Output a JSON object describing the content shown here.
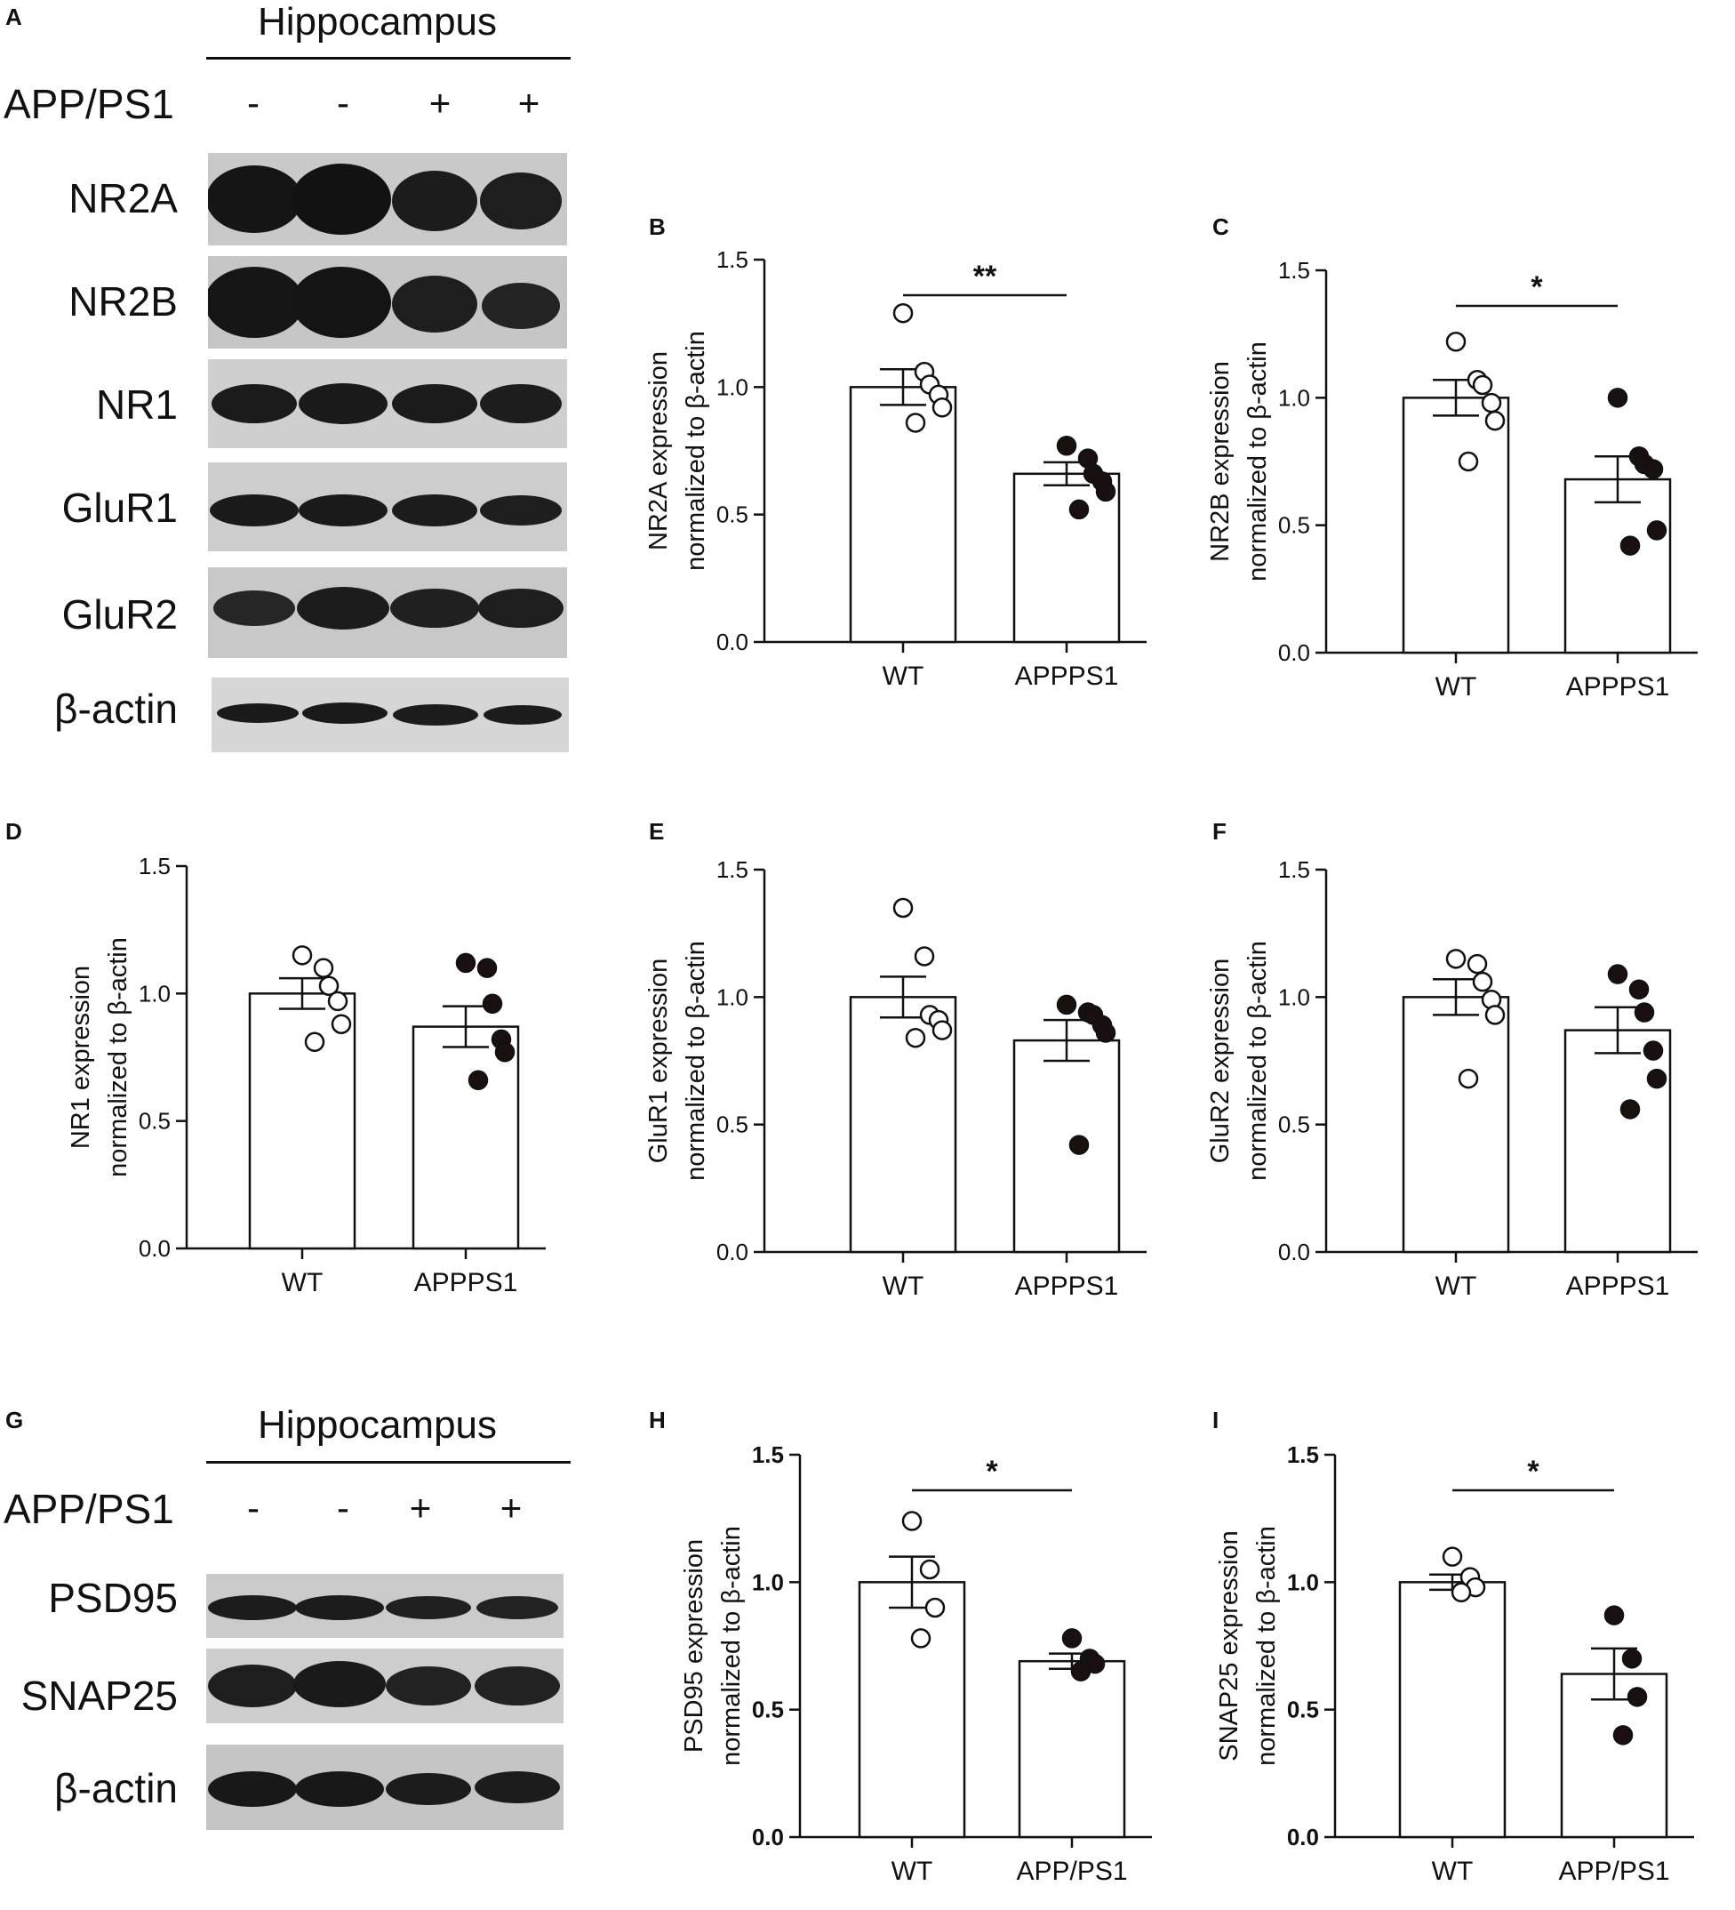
{
  "panels": {
    "a": "A",
    "b": "B",
    "c": "C",
    "d": "D",
    "e": "E",
    "f": "F",
    "g": "G",
    "h": "H",
    "i": "I"
  },
  "blot_top": {
    "title": "Hippocampus",
    "row_header": "APP/PS1",
    "signs": [
      "-",
      "-",
      "+",
      "+"
    ],
    "rows": [
      "NR2A",
      "NR2B",
      "NR1",
      "GluR1",
      "GluR2",
      "β-actin"
    ]
  },
  "blot_bottom": {
    "title": "Hippocampus",
    "row_header": "APP/PS1",
    "signs": [
      "-",
      "-",
      "+",
      "+"
    ],
    "rows": [
      "PSD95",
      "SNAP25",
      "β-actin"
    ]
  },
  "chart_data": [
    {
      "panel": "B",
      "type": "bar",
      "categories": [
        "WT",
        "APPPS1"
      ],
      "ylabel": [
        "NR2A expression",
        "normalized to β-actin"
      ],
      "ylim": [
        0,
        1.5
      ],
      "yticks": [
        "0.0",
        "0.5",
        "1.0",
        "1.5"
      ],
      "means": [
        1.0,
        0.66
      ],
      "sem": [
        0.07,
        0.045
      ],
      "points": [
        [
          1.29,
          1.06,
          1.01,
          0.97,
          0.92,
          0.86
        ],
        [
          0.77,
          0.72,
          0.66,
          0.63,
          0.59,
          0.52
        ]
      ],
      "significance": "**",
      "bold_ticks": false
    },
    {
      "panel": "C",
      "type": "bar",
      "categories": [
        "WT",
        "APPPS1"
      ],
      "ylabel": [
        "NR2B expression",
        "normalized to β-actin"
      ],
      "ylim": [
        0,
        1.5
      ],
      "yticks": [
        "0.0",
        "0.5",
        "1.0",
        "1.5"
      ],
      "means": [
        1.0,
        0.68
      ],
      "sem": [
        0.07,
        0.09
      ],
      "points": [
        [
          1.22,
          1.07,
          1.05,
          0.98,
          0.91,
          0.75
        ],
        [
          1.0,
          0.77,
          0.74,
          0.72,
          0.48,
          0.42
        ]
      ],
      "significance": "*",
      "bold_ticks": false
    },
    {
      "panel": "D",
      "type": "bar",
      "categories": [
        "WT",
        "APPPS1"
      ],
      "ylabel": [
        "NR1 expression",
        "normalized to β-actin"
      ],
      "ylim": [
        0,
        1.5
      ],
      "yticks": [
        "0.0",
        "0.5",
        "1.0",
        "1.5"
      ],
      "means": [
        1.0,
        0.87
      ],
      "sem": [
        0.06,
        0.08
      ],
      "points": [
        [
          1.15,
          1.1,
          1.03,
          0.97,
          0.88,
          0.81
        ],
        [
          1.12,
          1.1,
          0.96,
          0.82,
          0.77,
          0.66
        ]
      ],
      "significance": "",
      "bold_ticks": false
    },
    {
      "panel": "E",
      "type": "bar",
      "categories": [
        "WT",
        "APPPS1"
      ],
      "ylabel": [
        "GluR1 expression",
        "normalized to β-actin"
      ],
      "ylim": [
        0,
        1.5
      ],
      "yticks": [
        "0.0",
        "0.5",
        "1.0",
        "1.5"
      ],
      "means": [
        1.0,
        0.83
      ],
      "sem": [
        0.08,
        0.08
      ],
      "points": [
        [
          1.35,
          1.16,
          0.93,
          0.91,
          0.87,
          0.84
        ],
        [
          0.97,
          0.94,
          0.93,
          0.89,
          0.86,
          0.42
        ]
      ],
      "significance": "",
      "bold_ticks": false
    },
    {
      "panel": "F",
      "type": "bar",
      "categories": [
        "WT",
        "APPPS1"
      ],
      "ylabel": [
        "GluR2 expression",
        "normalized to β-actin"
      ],
      "ylim": [
        0,
        1.5
      ],
      "yticks": [
        "0.0",
        "0.5",
        "1.0",
        "1.5"
      ],
      "means": [
        1.0,
        0.87
      ],
      "sem": [
        0.07,
        0.09
      ],
      "points": [
        [
          1.15,
          1.13,
          1.06,
          0.99,
          0.93,
          0.68
        ],
        [
          1.09,
          1.03,
          0.94,
          0.79,
          0.68,
          0.56
        ]
      ],
      "significance": "",
      "bold_ticks": false
    },
    {
      "panel": "H",
      "type": "bar",
      "categories": [
        "WT",
        "APP/PS1"
      ],
      "ylabel": [
        "PSD95 expression",
        "normalized to β-actin"
      ],
      "ylim": [
        0,
        1.5
      ],
      "yticks": [
        "0.0",
        "0.5",
        "1.0",
        "1.5"
      ],
      "means": [
        1.0,
        0.69
      ],
      "sem": [
        0.1,
        0.03
      ],
      "points": [
        [
          1.24,
          1.05,
          0.9,
          0.78
        ],
        [
          0.78,
          0.7,
          0.68,
          0.65
        ]
      ],
      "significance": "*",
      "bold_ticks": true
    },
    {
      "panel": "I",
      "type": "bar",
      "categories": [
        "WT",
        "APP/PS1"
      ],
      "ylabel": [
        "SNAP25 expression",
        "normalized to β-actin"
      ],
      "ylim": [
        0,
        1.5
      ],
      "yticks": [
        "0.0",
        "0.5",
        "1.0",
        "1.5"
      ],
      "means": [
        1.0,
        0.64
      ],
      "sem": [
        0.03,
        0.1
      ],
      "points": [
        [
          1.1,
          1.02,
          0.98,
          0.96
        ],
        [
          0.87,
          0.7,
          0.55,
          0.4
        ]
      ],
      "significance": "*",
      "bold_ticks": true
    }
  ]
}
